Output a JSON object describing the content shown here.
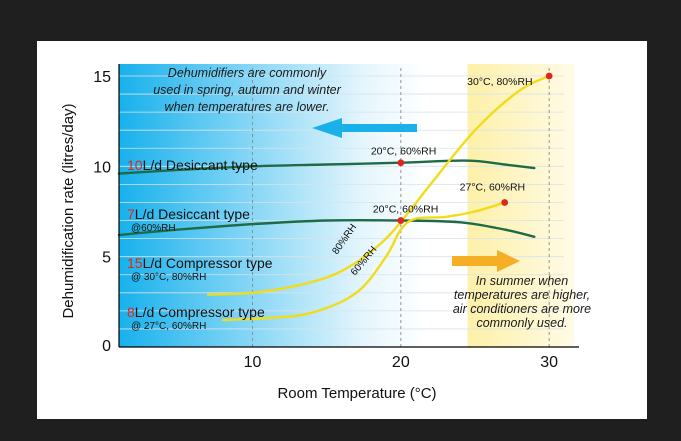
{
  "chart_data": {
    "type": "line",
    "xlabel": "Room Temperature (°C)",
    "ylabel": "Dehumidification rate (litres/day)",
    "xlim": [
      1,
      31
    ],
    "ylim": [
      0,
      15
    ],
    "x_ticks": [
      10,
      20,
      30
    ],
    "y_ticks": [
      0,
      5,
      10,
      15
    ],
    "grid": true,
    "series": [
      {
        "num": "10",
        "name": "L/d Desiccant type",
        "sub": "",
        "color": "#1f6b48",
        "x": [
          1,
          5,
          10,
          15,
          20,
          23,
          25,
          27,
          29
        ],
        "y": [
          9.6,
          9.8,
          10.0,
          10.1,
          10.2,
          10.3,
          10.3,
          10.1,
          9.9
        ]
      },
      {
        "num": "7",
        "name": "L/d Desiccant type",
        "sub": "@60%RH",
        "color": "#1f6b48",
        "x": [
          1,
          5,
          10,
          15,
          20,
          24,
          27,
          29
        ],
        "y": [
          6.2,
          6.5,
          6.8,
          7.0,
          7.0,
          6.9,
          6.5,
          6.1
        ]
      },
      {
        "num": "15",
        "name": "L/d Compressor type",
        "sub": "@ 30°C, 80%RH",
        "color": "#f2dc18",
        "x": [
          7,
          10,
          13,
          16,
          19,
          22,
          25,
          28,
          30
        ],
        "y": [
          2.9,
          3.0,
          3.4,
          4.2,
          6.0,
          9.0,
          12.0,
          14.2,
          15.0
        ]
      },
      {
        "num": "8",
        "name": "L/d Compressor type",
        "sub": "@ 27°C, 60%RH",
        "color": "#f2dc18",
        "x": [
          8,
          11,
          14,
          17,
          19,
          20,
          21,
          23,
          25,
          27
        ],
        "y": [
          1.5,
          1.6,
          1.9,
          3.0,
          5.0,
          6.5,
          7.1,
          7.2,
          7.5,
          8.0
        ]
      }
    ],
    "points": [
      {
        "label": "30°C, 80%RH",
        "x": 30,
        "y": 15,
        "color": "#e0261b"
      },
      {
        "label": "20°C, 60%RH",
        "x": 20,
        "y": 10.2,
        "color": "#e0261b"
      },
      {
        "label": "20°C, 60%RH",
        "x": 20,
        "y": 7.0,
        "color": "#e0261b"
      },
      {
        "label": "27°C, 60%RH",
        "x": 27,
        "y": 8.0,
        "color": "#e0261b"
      }
    ],
    "curve_labels": [
      "80%RH",
      "60%RH"
    ],
    "annotations": {
      "spring": [
        "Dehumidifiers are commonly",
        "used in spring, autumn and winter",
        "when temperatures are lower."
      ],
      "summer": [
        "In summer when",
        "temperatures are higher,",
        "air conditioners are more",
        "commonly used."
      ]
    },
    "colors": {
      "cool_region": "#1ab6ef",
      "warm_region": "#fdf3b4",
      "arrow_left": "#1ab0ea",
      "arrow_right": "#f6ae25"
    }
  }
}
